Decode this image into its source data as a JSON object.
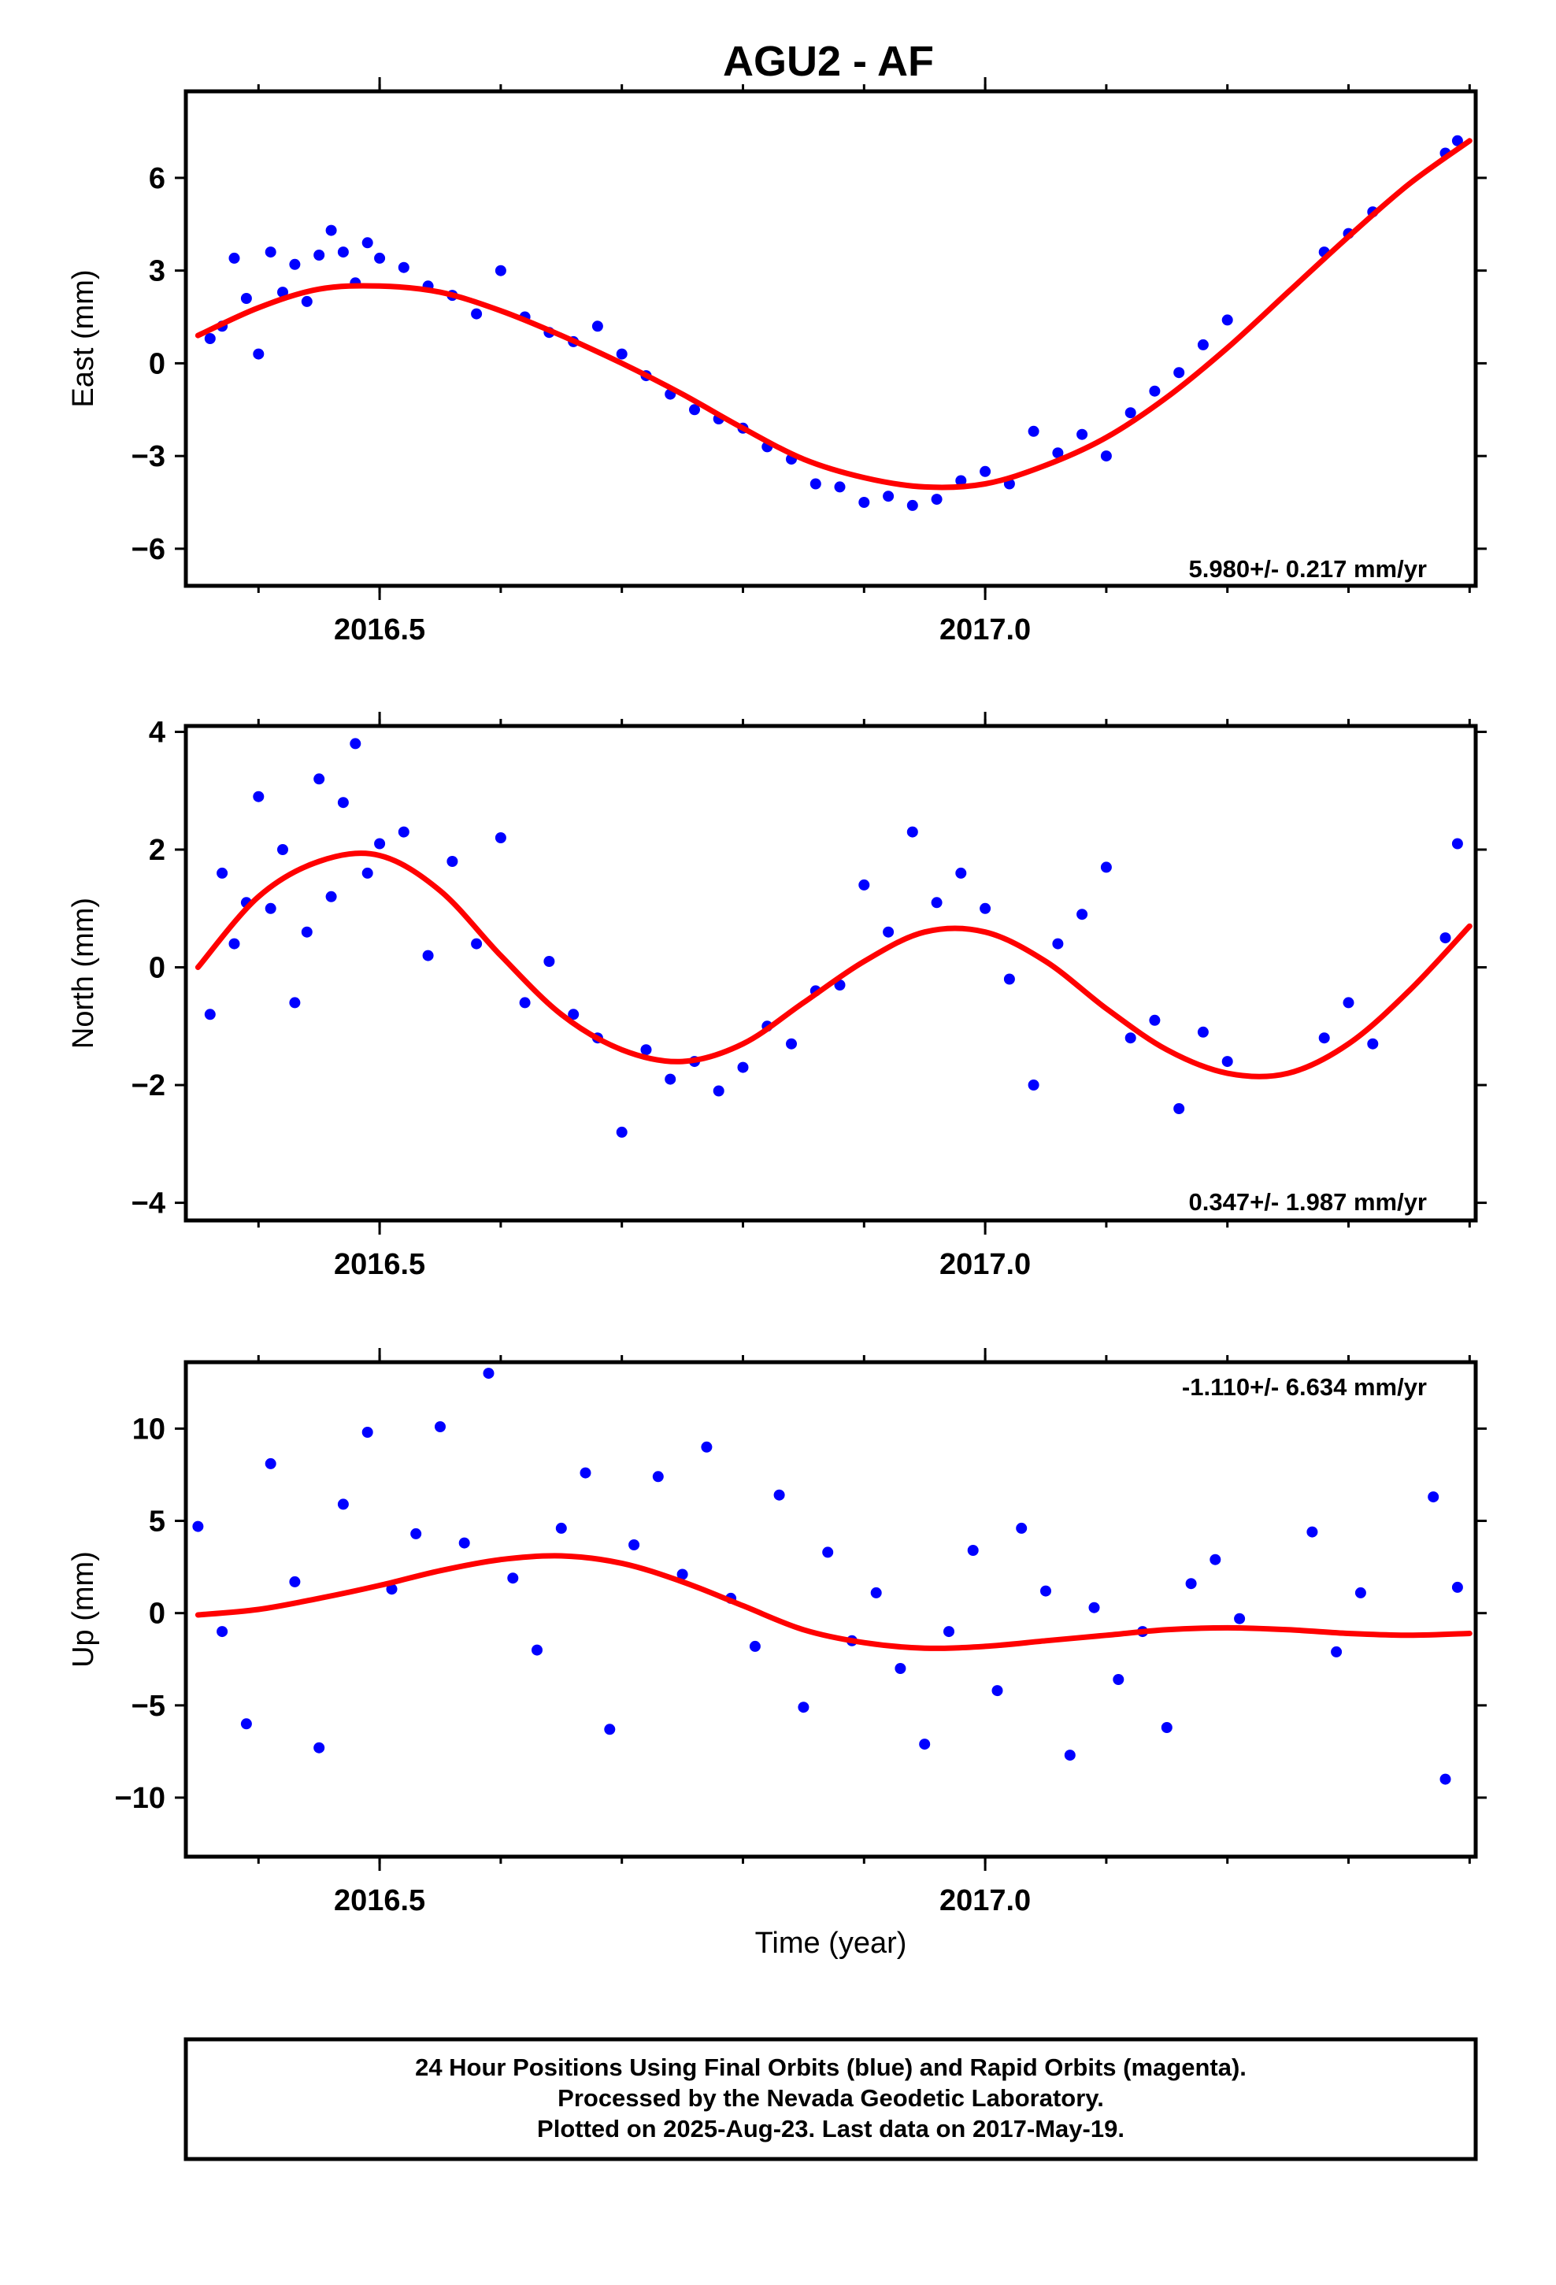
{
  "chart_data": [
    {
      "type": "scatter",
      "title": "AGU2 - AF",
      "ylabel": "East (mm)",
      "xlabel": "",
      "xlim": [
        2016.34,
        2017.405
      ],
      "ylim": [
        -7.2,
        8.8
      ],
      "yticks": [
        6,
        3,
        0,
        -3,
        -6
      ],
      "ytick_labels": [
        "6",
        "3",
        "0",
        "−3",
        "−6"
      ],
      "xticks": [
        2016.5,
        2017.0
      ],
      "xtick_labels": [
        "2016.5",
        "2017.0"
      ],
      "annotation": "5.980+/- 0.217 mm/yr",
      "grid": false,
      "series": [
        {
          "kind": "points",
          "color": "#0000ff",
          "x": [
            2016.36,
            2016.37,
            2016.38,
            2016.39,
            2016.4,
            2016.41,
            2016.42,
            2016.43,
            2016.44,
            2016.45,
            2016.46,
            2016.47,
            2016.48,
            2016.49,
            2016.5,
            2016.52,
            2016.54,
            2016.56,
            2016.58,
            2016.6,
            2016.62,
            2016.64,
            2016.66,
            2016.68,
            2016.7,
            2016.72,
            2016.74,
            2016.76,
            2016.78,
            2016.8,
            2016.82,
            2016.84,
            2016.86,
            2016.88,
            2016.9,
            2016.92,
            2016.94,
            2016.96,
            2016.98,
            2017.0,
            2017.02,
            2017.04,
            2017.06,
            2017.08,
            2017.1,
            2017.12,
            2017.14,
            2017.16,
            2017.18,
            2017.2,
            2017.28,
            2017.3,
            2017.32,
            2017.38,
            2017.39
          ],
          "y": [
            0.8,
            1.2,
            3.4,
            2.1,
            0.3,
            3.6,
            2.3,
            3.2,
            2.0,
            3.5,
            4.3,
            3.6,
            2.6,
            3.9,
            3.4,
            3.1,
            2.5,
            2.2,
            1.6,
            3.0,
            1.5,
            1.0,
            0.7,
            1.2,
            0.3,
            -0.4,
            -1.0,
            -1.5,
            -1.8,
            -2.1,
            -2.7,
            -3.1,
            -3.9,
            -4.0,
            -4.5,
            -4.3,
            -4.6,
            -4.4,
            -3.8,
            -3.5,
            -3.9,
            -2.2,
            -2.9,
            -2.3,
            -3.0,
            -1.6,
            -0.9,
            -0.3,
            0.6,
            1.4,
            3.6,
            4.2,
            4.9,
            6.8,
            7.2
          ]
        },
        {
          "kind": "fit",
          "color": "#ff0000",
          "x": [
            2016.35,
            2016.4,
            2016.45,
            2016.5,
            2016.55,
            2016.6,
            2016.65,
            2016.7,
            2016.75,
            2016.8,
            2016.85,
            2016.9,
            2016.95,
            2017.0,
            2017.05,
            2017.1,
            2017.15,
            2017.2,
            2017.25,
            2017.3,
            2017.35,
            2017.4
          ],
          "y": [
            0.9,
            1.8,
            2.4,
            2.5,
            2.3,
            1.7,
            0.9,
            0.0,
            -1.0,
            -2.1,
            -3.1,
            -3.7,
            -4.0,
            -3.9,
            -3.3,
            -2.4,
            -1.1,
            0.5,
            2.3,
            4.1,
            5.8,
            7.2
          ]
        }
      ]
    },
    {
      "type": "scatter",
      "title": "",
      "ylabel": "North (mm)",
      "xlabel": "",
      "xlim": [
        2016.34,
        2017.405
      ],
      "ylim": [
        -4.3,
        4.1
      ],
      "yticks": [
        4,
        2,
        0,
        -2,
        -4
      ],
      "ytick_labels": [
        "4",
        "2",
        "0",
        "−2",
        "−4"
      ],
      "xticks": [
        2016.5,
        2017.0
      ],
      "xtick_labels": [
        "2016.5",
        "2017.0"
      ],
      "annotation": "0.347+/- 1.987 mm/yr",
      "grid": false,
      "series": [
        {
          "kind": "points",
          "color": "#0000ff",
          "x": [
            2016.36,
            2016.37,
            2016.38,
            2016.39,
            2016.4,
            2016.41,
            2016.42,
            2016.43,
            2016.44,
            2016.45,
            2016.46,
            2016.47,
            2016.48,
            2016.49,
            2016.5,
            2016.52,
            2016.54,
            2016.56,
            2016.58,
            2016.6,
            2016.62,
            2016.64,
            2016.66,
            2016.68,
            2016.7,
            2016.72,
            2016.74,
            2016.76,
            2016.78,
            2016.8,
            2016.82,
            2016.84,
            2016.86,
            2016.88,
            2016.9,
            2016.92,
            2016.94,
            2016.96,
            2016.98,
            2017.0,
            2017.02,
            2017.04,
            2017.06,
            2017.08,
            2017.1,
            2017.12,
            2017.14,
            2017.16,
            2017.18,
            2017.2,
            2017.28,
            2017.3,
            2017.32,
            2017.38,
            2017.39
          ],
          "y": [
            -0.8,
            1.6,
            0.4,
            1.1,
            2.9,
            1.0,
            2.0,
            -0.6,
            0.6,
            3.2,
            1.2,
            2.8,
            3.8,
            1.6,
            2.1,
            2.3,
            0.2,
            1.8,
            0.4,
            2.2,
            -0.6,
            0.1,
            -0.8,
            -1.2,
            -2.8,
            -1.4,
            -1.9,
            -1.6,
            -2.1,
            -1.7,
            -1.0,
            -1.3,
            -0.4,
            -0.3,
            1.4,
            0.6,
            2.3,
            1.1,
            1.6,
            1.0,
            -0.2,
            -2.0,
            0.4,
            0.9,
            1.7,
            -1.2,
            -0.9,
            -2.4,
            -1.1,
            -1.6,
            -1.2,
            -0.6,
            -1.3,
            0.5,
            2.1
          ]
        },
        {
          "kind": "fit",
          "color": "#ff0000",
          "x": [
            2016.35,
            2016.4,
            2016.45,
            2016.5,
            2016.55,
            2016.6,
            2016.65,
            2016.7,
            2016.75,
            2016.8,
            2016.85,
            2016.9,
            2016.95,
            2017.0,
            2017.05,
            2017.1,
            2017.15,
            2017.2,
            2017.25,
            2017.3,
            2017.35,
            2017.4
          ],
          "y": [
            0.0,
            1.2,
            1.8,
            1.9,
            1.3,
            0.2,
            -0.8,
            -1.4,
            -1.6,
            -1.3,
            -0.6,
            0.1,
            0.6,
            0.6,
            0.1,
            -0.7,
            -1.4,
            -1.8,
            -1.8,
            -1.3,
            -0.4,
            0.7
          ]
        }
      ]
    },
    {
      "type": "scatter",
      "title": "",
      "ylabel": "Up (mm)",
      "xlabel": "Time (year)",
      "xlim": [
        2016.34,
        2017.405
      ],
      "ylim": [
        -13.2,
        13.6
      ],
      "yticks": [
        10,
        5,
        0,
        -5,
        -10
      ],
      "ytick_labels": [
        "10",
        "5",
        "0",
        "−5",
        "−10"
      ],
      "xticks": [
        2016.5,
        2017.0
      ],
      "xtick_labels": [
        "2016.5",
        "2017.0"
      ],
      "annotation": "-1.110+/- 6.634 mm/yr",
      "grid": false,
      "series": [
        {
          "kind": "points",
          "color": "#0000ff",
          "x": [
            2016.35,
            2016.37,
            2016.39,
            2016.41,
            2016.43,
            2016.45,
            2016.47,
            2016.49,
            2016.51,
            2016.53,
            2016.55,
            2016.57,
            2016.59,
            2016.61,
            2016.63,
            2016.65,
            2016.67,
            2016.69,
            2016.71,
            2016.73,
            2016.75,
            2016.77,
            2016.79,
            2016.81,
            2016.83,
            2016.85,
            2016.87,
            2016.89,
            2016.91,
            2016.93,
            2016.95,
            2016.97,
            2016.99,
            2017.01,
            2017.03,
            2017.05,
            2017.07,
            2017.09,
            2017.11,
            2017.13,
            2017.15,
            2017.17,
            2017.19,
            2017.21,
            2017.27,
            2017.29,
            2017.31,
            2017.37,
            2017.38,
            2017.39
          ],
          "y": [
            4.7,
            -1.0,
            -6.0,
            8.1,
            1.7,
            -7.3,
            5.9,
            9.8,
            1.3,
            4.3,
            10.1,
            3.8,
            13.0,
            1.9,
            -2.0,
            4.6,
            7.6,
            -6.3,
            3.7,
            7.4,
            2.1,
            9.0,
            0.8,
            -1.8,
            6.4,
            -5.1,
            3.3,
            -1.5,
            1.1,
            -3.0,
            -7.1,
            -1.0,
            3.4,
            -4.2,
            4.6,
            1.2,
            -7.7,
            0.3,
            -3.6,
            -1.0,
            -6.2,
            1.6,
            2.9,
            -0.3,
            4.4,
            -2.1,
            1.1,
            6.3,
            -9.0,
            1.4
          ]
        },
        {
          "kind": "fit",
          "color": "#ff0000",
          "x": [
            2016.35,
            2016.4,
            2016.45,
            2016.5,
            2016.55,
            2016.6,
            2016.65,
            2016.7,
            2016.75,
            2016.8,
            2016.85,
            2016.9,
            2016.95,
            2017.0,
            2017.05,
            2017.1,
            2017.15,
            2017.2,
            2017.25,
            2017.3,
            2017.35,
            2017.4
          ],
          "y": [
            -0.1,
            0.2,
            0.8,
            1.5,
            2.3,
            2.9,
            3.1,
            2.7,
            1.7,
            0.4,
            -0.9,
            -1.6,
            -1.9,
            -1.8,
            -1.5,
            -1.2,
            -0.9,
            -0.8,
            -0.9,
            -1.1,
            -1.2,
            -1.1
          ]
        }
      ]
    }
  ],
  "footer": {
    "line1": "24 Hour Positions Using Final Orbits (blue) and Rapid Orbits (magenta).",
    "line2": "Processed by the Nevada Geodetic Laboratory.",
    "line3": "Plotted on 2025-Aug-23. Last data on 2017-May-19."
  }
}
